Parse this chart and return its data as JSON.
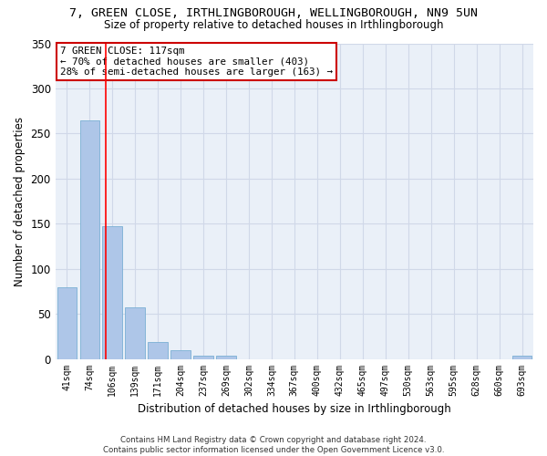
{
  "title": "7, GREEN CLOSE, IRTHLINGBOROUGH, WELLINGBOROUGH, NN9 5UN",
  "subtitle": "Size of property relative to detached houses in Irthlingborough",
  "xlabel": "Distribution of detached houses by size in Irthlingborough",
  "ylabel": "Number of detached properties",
  "bar_color": "#aec6e8",
  "bar_edge_color": "#7aafd4",
  "categories": [
    "41sqm",
    "74sqm",
    "106sqm",
    "139sqm",
    "171sqm",
    "204sqm",
    "237sqm",
    "269sqm",
    "302sqm",
    "334sqm",
    "367sqm",
    "400sqm",
    "432sqm",
    "465sqm",
    "497sqm",
    "530sqm",
    "563sqm",
    "595sqm",
    "628sqm",
    "660sqm",
    "693sqm"
  ],
  "values": [
    79,
    265,
    147,
    57,
    19,
    10,
    4,
    4,
    0,
    0,
    0,
    0,
    0,
    0,
    0,
    0,
    0,
    0,
    0,
    0,
    4
  ],
  "ylim": [
    0,
    350
  ],
  "yticks": [
    0,
    50,
    100,
    150,
    200,
    250,
    300,
    350
  ],
  "red_line_x": 1.7,
  "annotation_title": "7 GREEN CLOSE: 117sqm",
  "annotation_line1": "← 70% of detached houses are smaller (403)",
  "annotation_line2": "28% of semi-detached houses are larger (163) →",
  "annotation_box_color": "#ffffff",
  "annotation_box_edge": "#cc0000",
  "grid_color": "#d0d8e8",
  "bg_color": "#eaf0f8",
  "footer": "Contains HM Land Registry data © Crown copyright and database right 2024.\nContains public sector information licensed under the Open Government Licence v3.0."
}
